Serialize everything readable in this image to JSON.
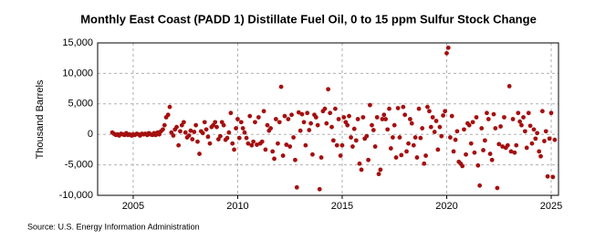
{
  "chart_data": {
    "type": "scatter",
    "title": "Monthly East Coast (PADD 1) Distillate Fuel Oil, 0 to 15 ppm Sulfur Stock Change",
    "y_label": "Thousand Barrels",
    "source": "Source: U.S. Energy Information Administration",
    "color": "#a50f0f",
    "grid": true,
    "xlim": [
      2003.3,
      2025.35
    ],
    "ylim": [
      -10000,
      15000
    ],
    "xticks": [
      2005,
      2010,
      2015,
      2020,
      2025
    ],
    "yticks": [
      {
        "value": -10000,
        "label": "-10,000"
      },
      {
        "value": -5000,
        "label": "-5,000"
      },
      0,
      {
        "value": 5000,
        "label": "5,000"
      },
      {
        "value": 10000,
        "label": "10,000"
      },
      {
        "value": 15000,
        "label": "15,000"
      }
    ],
    "x": [
      2004.0,
      2004.08,
      2004.17,
      2004.25,
      2004.33,
      2004.42,
      2004.5,
      2004.58,
      2004.67,
      2004.75,
      2004.83,
      2004.92,
      2005.0,
      2005.08,
      2005.17,
      2005.25,
      2005.33,
      2005.42,
      2005.5,
      2005.58,
      2005.67,
      2005.75,
      2005.83,
      2005.92,
      2006.0,
      2006.08,
      2006.17,
      2006.25,
      2006.33,
      2006.42,
      2006.5,
      2006.58,
      2006.67,
      2006.75,
      2006.83,
      2006.92,
      2007.0,
      2007.08,
      2007.17,
      2007.25,
      2007.33,
      2007.42,
      2007.5,
      2007.58,
      2007.67,
      2007.75,
      2007.83,
      2007.92,
      2008.0,
      2008.08,
      2008.17,
      2008.25,
      2008.33,
      2008.42,
      2008.5,
      2008.58,
      2008.67,
      2008.75,
      2008.83,
      2008.92,
      2009.0,
      2009.08,
      2009.17,
      2009.25,
      2009.33,
      2009.42,
      2009.5,
      2009.58,
      2009.67,
      2009.75,
      2009.83,
      2009.92,
      2010.0,
      2010.08,
      2010.17,
      2010.25,
      2010.33,
      2010.42,
      2010.5,
      2010.58,
      2010.67,
      2010.75,
      2010.83,
      2010.92,
      2011.0,
      2011.08,
      2011.17,
      2011.25,
      2011.33,
      2011.42,
      2011.5,
      2011.58,
      2011.67,
      2011.75,
      2011.83,
      2011.92,
      2012.0,
      2012.08,
      2012.17,
      2012.25,
      2012.33,
      2012.42,
      2012.5,
      2012.58,
      2012.67,
      2012.75,
      2012.83,
      2012.92,
      2013.0,
      2013.08,
      2013.17,
      2013.25,
      2013.33,
      2013.42,
      2013.5,
      2013.58,
      2013.67,
      2013.75,
      2013.83,
      2013.92,
      2014.0,
      2014.08,
      2014.17,
      2014.25,
      2014.33,
      2014.42,
      2014.5,
      2014.58,
      2014.67,
      2014.75,
      2014.83,
      2014.92,
      2015.0,
      2015.08,
      2015.17,
      2015.25,
      2015.33,
      2015.42,
      2015.5,
      2015.58,
      2015.67,
      2015.75,
      2015.83,
      2015.92,
      2016.0,
      2016.08,
      2016.17,
      2016.25,
      2016.33,
      2016.42,
      2016.5,
      2016.58,
      2016.67,
      2016.75,
      2016.83,
      2016.92,
      2017.0,
      2017.08,
      2017.17,
      2017.25,
      2017.33,
      2017.42,
      2017.5,
      2017.58,
      2017.67,
      2017.75,
      2017.83,
      2017.92,
      2018.0,
      2018.08,
      2018.17,
      2018.25,
      2018.33,
      2018.42,
      2018.5,
      2018.58,
      2018.67,
      2018.75,
      2018.83,
      2018.92,
      2019.0,
      2019.08,
      2019.17,
      2019.25,
      2019.33,
      2019.42,
      2019.5,
      2019.58,
      2019.67,
      2019.75,
      2019.83,
      2019.92,
      2020.0,
      2020.08,
      2020.17,
      2020.25,
      2020.33,
      2020.42,
      2020.5,
      2020.58,
      2020.67,
      2020.75,
      2020.83,
      2020.92,
      2021.0,
      2021.08,
      2021.17,
      2021.25,
      2021.33,
      2021.42,
      2021.5,
      2021.58,
      2021.67,
      2021.75,
      2021.83,
      2021.92,
      2022.0,
      2022.08,
      2022.17,
      2022.25,
      2022.33,
      2022.42,
      2022.5,
      2022.58,
      2022.67,
      2022.75,
      2022.83,
      2022.92,
      2023.0,
      2023.08,
      2023.17,
      2023.25,
      2023.33,
      2023.42,
      2023.5,
      2023.58,
      2023.67,
      2023.75,
      2023.83,
      2023.92,
      2024.0,
      2024.08,
      2024.17,
      2024.25,
      2024.33,
      2024.42,
      2024.5,
      2024.58,
      2024.67,
      2024.75,
      2024.83,
      2024.92,
      2025.0,
      2025.08,
      2025.17
    ],
    "values": [
      300,
      100,
      -100,
      0,
      -200,
      100,
      0,
      -100,
      200,
      -100,
      0,
      -200,
      0,
      -100,
      100,
      0,
      -200,
      100,
      0,
      100,
      -100,
      200,
      0,
      -100,
      200,
      -100,
      300,
      0,
      500,
      800,
      1500,
      2800,
      3200,
      4500,
      300,
      -200,
      800,
      1200,
      -1800,
      500,
      1500,
      2000,
      300,
      -500,
      -200,
      600,
      -800,
      400,
      1500,
      -1200,
      -3200,
      500,
      200,
      2000,
      800,
      -400,
      -1500,
      1200,
      1500,
      2000,
      1200,
      -800,
      -300,
      2000,
      1500,
      -900,
      -600,
      300,
      3500,
      -1500,
      -2500,
      1000,
      2500,
      -600,
      2000,
      1000,
      300,
      -600,
      -1500,
      3000,
      -1800,
      -1200,
      2000,
      -1700,
      2800,
      -1500,
      -1200,
      3800,
      -2500,
      1500,
      600,
      1000,
      -2800,
      -4000,
      2500,
      -1500,
      2000,
      7800,
      -3500,
      3000,
      -1700,
      2500,
      -2000,
      3200,
      -500,
      -4200,
      -8700,
      3600,
      600,
      3300,
      2000,
      -1800,
      3500,
      700,
      1800,
      -3300,
      3200,
      2800,
      1500,
      -9000,
      -3800,
      3800,
      4200,
      1800,
      7400,
      3500,
      1200,
      -1000,
      4200,
      -1800,
      2500,
      -3500,
      -1800,
      2800,
      2000,
      1500,
      3000,
      -500,
      -2000,
      900,
      -1000,
      2500,
      -4800,
      -5800,
      2800,
      -700,
      -300,
      -4200,
      4800,
      1500,
      700,
      -2000,
      2800,
      -6500,
      -5800,
      2500,
      3200,
      2500,
      800,
      4200,
      -2300,
      -500,
      1500,
      -3800,
      4300,
      -500,
      -3400,
      4500,
      3200,
      -2800,
      -1500,
      2500,
      1800,
      -1800,
      -500,
      -3800,
      4200,
      -600,
      1000,
      -4800,
      -3500,
      4500,
      3800,
      1200,
      2800,
      400,
      2200,
      -2500,
      1200,
      -300,
      3100,
      3800,
      13300,
      14200,
      -500,
      3000,
      -2800,
      -900,
      500,
      -4500,
      -4800,
      -5200,
      800,
      -3300,
      1800,
      1500,
      -1500,
      2000,
      -3000,
      2800,
      -5100,
      -8400,
      1000,
      -2600,
      -1000,
      3500,
      2500,
      -3200,
      -4200,
      3300,
      1000,
      -8800,
      -1600,
      1300,
      -2000,
      2800,
      -2200,
      -1800,
      7900,
      -2800,
      2500,
      -3000,
      -1800,
      3500,
      2100,
      1500,
      2800,
      500,
      -2200,
      3500,
      1400,
      -1500,
      800,
      -700,
      200,
      -2800,
      -3600,
      3800,
      -1100,
      500,
      -6900,
      -700,
      3500,
      -7000,
      -900
    ]
  }
}
